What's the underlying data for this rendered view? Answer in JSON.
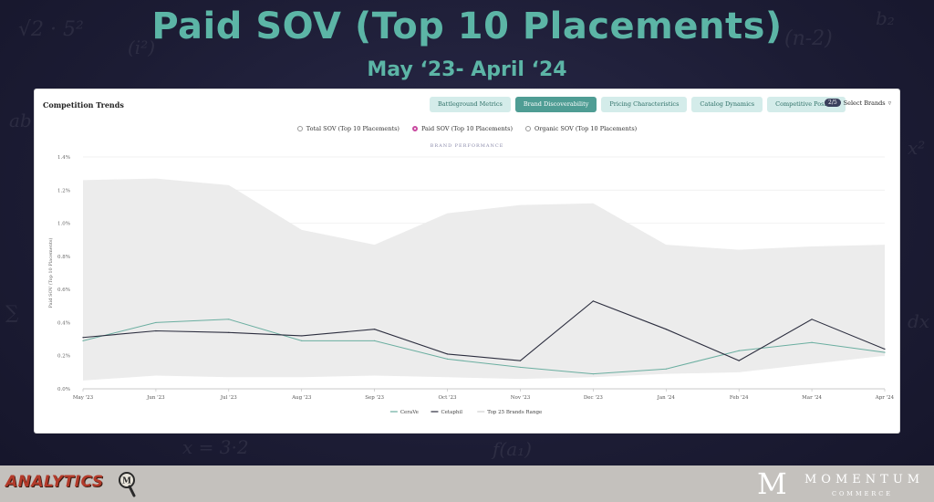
{
  "slide": {
    "title": "Paid SOV (Top 10 Placements)",
    "subtitle": "May ‘23- April ‘24"
  },
  "panel": {
    "title": "Competition Trends",
    "tabs": [
      {
        "label": "Battleground Metrics",
        "active": false
      },
      {
        "label": "Brand Discoverability",
        "active": true
      },
      {
        "label": "Pricing Characteristics",
        "active": false
      },
      {
        "label": "Catalog Dynamics",
        "active": false
      },
      {
        "label": "Competitive Position",
        "active": false
      }
    ],
    "brand_count": "2/5",
    "select_brands_label": "Select Brands",
    "metric_options": [
      {
        "label": "Total SOV (Top 10 Placements)",
        "selected": false
      },
      {
        "label": "Paid SOV (Top 10 Placements)",
        "selected": true
      },
      {
        "label": "Organic SOV (Top 10 Placements)",
        "selected": false
      }
    ],
    "chart_subtitle": "BRAND PERFORMANCE"
  },
  "chart_data": {
    "type": "line",
    "title": "BRAND PERFORMANCE",
    "ylabel": "Paid SOV (Top 10 Placements)",
    "xlabel": "",
    "ylim": [
      0,
      1.4
    ],
    "y_ticks": [
      0,
      0.2,
      0.4,
      0.6,
      0.8,
      1.0,
      1.2,
      1.4
    ],
    "y_tick_labels": [
      "0.0%",
      "0.2%",
      "0.4%",
      "0.6%",
      "0.8%",
      "1.0%",
      "1.2%",
      "1.4%"
    ],
    "x": [
      "May '23",
      "Jun '23",
      "Jul '23",
      "Aug '23",
      "Sep '23",
      "Oct '23",
      "Nov '23",
      "Dec '23",
      "Jan '24",
      "Feb '24",
      "Mar '24",
      "Apr '24"
    ],
    "series": [
      {
        "name": "CeraVe",
        "color": "#6aaea0",
        "values": [
          0.29,
          0.4,
          0.42,
          0.29,
          0.29,
          0.18,
          0.13,
          0.09,
          0.12,
          0.23,
          0.28,
          0.22
        ]
      },
      {
        "name": "Cetaphil",
        "color": "#2b2d3e",
        "values": [
          0.31,
          0.35,
          0.34,
          0.32,
          0.36,
          0.21,
          0.17,
          0.53,
          0.36,
          0.17,
          0.42,
          0.24
        ]
      }
    ],
    "range": {
      "name": "Top 25 Brands Range",
      "color": "#ececec",
      "upper": [
        1.26,
        1.27,
        1.23,
        0.96,
        0.87,
        1.06,
        1.11,
        1.12,
        0.87,
        0.84,
        0.86,
        0.87
      ],
      "lower": [
        0.05,
        0.08,
        0.07,
        0.07,
        0.08,
        0.07,
        0.06,
        0.07,
        0.09,
        0.1,
        0.15,
        0.2
      ]
    },
    "legend_position": "bottom",
    "grid": true
  },
  "footer": {
    "analytics_logo": "ANALYTICS",
    "brand_mark": "M",
    "brand_name": "MOMENTUM",
    "brand_tagline": "COMMERCE"
  },
  "colors": {
    "title": "#5cb5a6",
    "active_tab": "#4f9d94",
    "tab": "#d4ecea"
  }
}
